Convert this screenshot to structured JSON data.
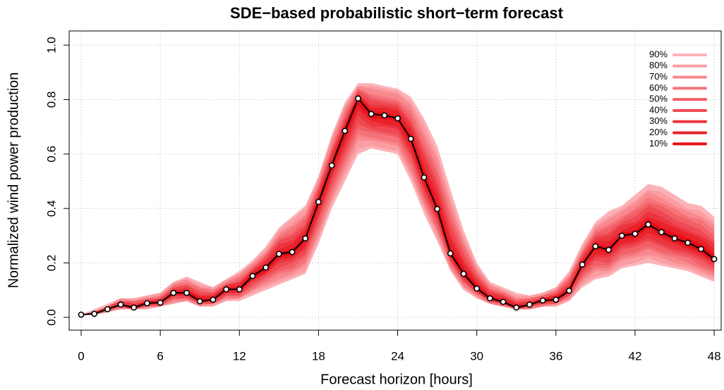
{
  "chart_data": {
    "type": "line",
    "title": "SDE−based probabilistic short−term forecast",
    "xlabel": "Forecast horizon [hours]",
    "ylabel": "Normalized wind power production",
    "x": [
      0,
      1,
      2,
      3,
      4,
      5,
      6,
      7,
      8,
      9,
      10,
      11,
      12,
      13,
      14,
      15,
      16,
      17,
      18,
      19,
      20,
      21,
      22,
      23,
      24,
      25,
      26,
      27,
      28,
      29,
      30,
      31,
      32,
      33,
      34,
      35,
      36,
      37,
      38,
      39,
      40,
      41,
      42,
      43,
      44,
      45,
      46,
      47,
      48
    ],
    "xlim": [
      -0.91,
      48.53
    ],
    "xticks": [
      0,
      6,
      12,
      18,
      24,
      30,
      36,
      42,
      48
    ],
    "ylim": [
      -0.047,
      1.052
    ],
    "yticks": [
      {
        "value": 0,
        "label": "0.0"
      },
      0.2,
      0.4,
      0.6,
      0.8,
      {
        "value": 1,
        "label": "1.0"
      }
    ],
    "grid": true,
    "legend": "top-right",
    "series": [
      {
        "color": "#000000",
        "values": [
          0.01,
          0.013,
          0.03,
          0.047,
          0.036,
          0.052,
          0.054,
          0.09,
          0.09,
          0.059,
          0.065,
          0.103,
          0.103,
          0.152,
          0.183,
          0.233,
          0.24,
          0.29,
          0.424,
          0.558,
          0.685,
          0.804,
          0.747,
          0.742,
          0.731,
          0.656,
          0.514,
          0.398,
          0.235,
          0.16,
          0.106,
          0.07,
          0.057,
          0.036,
          0.047,
          0.062,
          0.065,
          0.098,
          0.194,
          0.261,
          0.248,
          0.3,
          0.307,
          0.341,
          0.313,
          0.29,
          0.274,
          0.251,
          0.214
        ]
      }
    ],
    "bands": [
      {
        "name": "90%",
        "color": "#fcb3b8",
        "upper": [
          0.01,
          0.03,
          0.05,
          0.07,
          0.07,
          0.08,
          0.09,
          0.13,
          0.15,
          0.13,
          0.11,
          0.14,
          0.17,
          0.21,
          0.26,
          0.33,
          0.37,
          0.41,
          0.52,
          0.67,
          0.79,
          0.86,
          0.86,
          0.85,
          0.84,
          0.81,
          0.73,
          0.63,
          0.47,
          0.32,
          0.2,
          0.13,
          0.11,
          0.09,
          0.08,
          0.09,
          0.11,
          0.17,
          0.27,
          0.35,
          0.39,
          0.41,
          0.45,
          0.49,
          0.48,
          0.45,
          0.42,
          0.41,
          0.37
        ],
        "lower": [
          0.01,
          0.01,
          0.02,
          0.03,
          0.03,
          0.03,
          0.04,
          0.05,
          0.06,
          0.04,
          0.04,
          0.06,
          0.06,
          0.08,
          0.1,
          0.12,
          0.14,
          0.16,
          0.27,
          0.4,
          0.5,
          0.6,
          0.62,
          0.61,
          0.6,
          0.5,
          0.38,
          0.28,
          0.17,
          0.1,
          0.07,
          0.05,
          0.04,
          0.03,
          0.03,
          0.04,
          0.04,
          0.06,
          0.11,
          0.14,
          0.15,
          0.18,
          0.19,
          0.2,
          0.19,
          0.18,
          0.17,
          0.15,
          0.13
        ]
      },
      {
        "name": "80%",
        "color": "#fa9ea4",
        "upper": [
          0.01,
          0.02,
          0.04,
          0.07,
          0.07,
          0.08,
          0.09,
          0.13,
          0.14,
          0.12,
          0.11,
          0.14,
          0.16,
          0.2,
          0.25,
          0.32,
          0.36,
          0.4,
          0.51,
          0.66,
          0.78,
          0.85,
          0.85,
          0.84,
          0.83,
          0.79,
          0.71,
          0.6,
          0.44,
          0.3,
          0.19,
          0.12,
          0.1,
          0.08,
          0.08,
          0.09,
          0.11,
          0.16,
          0.26,
          0.34,
          0.37,
          0.4,
          0.43,
          0.47,
          0.46,
          0.43,
          0.4,
          0.39,
          0.35
        ],
        "lower": [
          0.01,
          0.01,
          0.02,
          0.03,
          0.03,
          0.03,
          0.04,
          0.05,
          0.06,
          0.04,
          0.04,
          0.06,
          0.07,
          0.09,
          0.11,
          0.13,
          0.15,
          0.17,
          0.29,
          0.42,
          0.52,
          0.62,
          0.63,
          0.62,
          0.61,
          0.52,
          0.4,
          0.29,
          0.18,
          0.11,
          0.07,
          0.05,
          0.04,
          0.03,
          0.03,
          0.04,
          0.04,
          0.06,
          0.12,
          0.15,
          0.16,
          0.19,
          0.2,
          0.22,
          0.2,
          0.19,
          0.18,
          0.16,
          0.14
        ]
      },
      {
        "name": "70%",
        "color": "#f7898f",
        "upper": [
          0.01,
          0.02,
          0.04,
          0.07,
          0.06,
          0.07,
          0.08,
          0.12,
          0.14,
          0.11,
          0.1,
          0.13,
          0.16,
          0.2,
          0.24,
          0.31,
          0.34,
          0.38,
          0.5,
          0.65,
          0.77,
          0.85,
          0.84,
          0.83,
          0.82,
          0.78,
          0.68,
          0.58,
          0.42,
          0.28,
          0.18,
          0.12,
          0.1,
          0.07,
          0.07,
          0.08,
          0.1,
          0.15,
          0.25,
          0.33,
          0.36,
          0.39,
          0.42,
          0.46,
          0.44,
          0.41,
          0.39,
          0.37,
          0.34
        ],
        "lower": [
          0.01,
          0.01,
          0.02,
          0.03,
          0.03,
          0.04,
          0.04,
          0.06,
          0.06,
          0.04,
          0.05,
          0.07,
          0.07,
          0.1,
          0.12,
          0.14,
          0.16,
          0.19,
          0.3,
          0.43,
          0.54,
          0.65,
          0.65,
          0.64,
          0.63,
          0.53,
          0.41,
          0.31,
          0.18,
          0.11,
          0.08,
          0.05,
          0.04,
          0.03,
          0.03,
          0.04,
          0.05,
          0.07,
          0.13,
          0.17,
          0.17,
          0.21,
          0.22,
          0.23,
          0.22,
          0.2,
          0.19,
          0.17,
          0.15
        ]
      },
      {
        "name": "60%",
        "color": "#f5747b",
        "upper": [
          0.01,
          0.02,
          0.04,
          0.06,
          0.06,
          0.07,
          0.08,
          0.12,
          0.13,
          0.11,
          0.1,
          0.13,
          0.15,
          0.19,
          0.23,
          0.3,
          0.33,
          0.37,
          0.49,
          0.63,
          0.76,
          0.84,
          0.82,
          0.81,
          0.8,
          0.76,
          0.66,
          0.55,
          0.39,
          0.27,
          0.17,
          0.11,
          0.09,
          0.07,
          0.07,
          0.08,
          0.1,
          0.15,
          0.24,
          0.32,
          0.34,
          0.37,
          0.4,
          0.44,
          0.42,
          0.4,
          0.37,
          0.36,
          0.32
        ],
        "lower": [
          0.01,
          0.01,
          0.02,
          0.04,
          0.03,
          0.04,
          0.04,
          0.06,
          0.07,
          0.05,
          0.05,
          0.07,
          0.07,
          0.1,
          0.13,
          0.16,
          0.17,
          0.2,
          0.32,
          0.45,
          0.56,
          0.67,
          0.66,
          0.65,
          0.64,
          0.55,
          0.42,
          0.32,
          0.19,
          0.12,
          0.08,
          0.05,
          0.04,
          0.03,
          0.03,
          0.04,
          0.05,
          0.07,
          0.14,
          0.18,
          0.18,
          0.22,
          0.23,
          0.25,
          0.23,
          0.22,
          0.2,
          0.18,
          0.16
        ]
      },
      {
        "name": "50%",
        "color": "#f25f67",
        "upper": [
          0.01,
          0.02,
          0.04,
          0.06,
          0.06,
          0.07,
          0.07,
          0.11,
          0.12,
          0.1,
          0.09,
          0.12,
          0.14,
          0.18,
          0.23,
          0.29,
          0.31,
          0.36,
          0.48,
          0.62,
          0.74,
          0.84,
          0.81,
          0.8,
          0.79,
          0.74,
          0.63,
          0.53,
          0.37,
          0.25,
          0.16,
          0.1,
          0.09,
          0.06,
          0.07,
          0.08,
          0.09,
          0.14,
          0.24,
          0.31,
          0.33,
          0.36,
          0.39,
          0.42,
          0.41,
          0.38,
          0.36,
          0.34,
          0.3
        ],
        "lower": [
          0.01,
          0.01,
          0.02,
          0.04,
          0.03,
          0.04,
          0.04,
          0.07,
          0.07,
          0.05,
          0.05,
          0.08,
          0.08,
          0.11,
          0.14,
          0.17,
          0.18,
          0.22,
          0.34,
          0.47,
          0.58,
          0.69,
          0.68,
          0.67,
          0.66,
          0.57,
          0.44,
          0.33,
          0.2,
          0.13,
          0.09,
          0.06,
          0.05,
          0.03,
          0.04,
          0.05,
          0.05,
          0.08,
          0.15,
          0.19,
          0.19,
          0.23,
          0.24,
          0.26,
          0.24,
          0.23,
          0.22,
          0.19,
          0.17
        ]
      },
      {
        "name": "40%",
        "color": "#ef4a53",
        "upper": [
          0.01,
          0.02,
          0.04,
          0.06,
          0.05,
          0.06,
          0.07,
          0.11,
          0.12,
          0.09,
          0.09,
          0.12,
          0.13,
          0.18,
          0.22,
          0.28,
          0.3,
          0.34,
          0.47,
          0.61,
          0.73,
          0.83,
          0.8,
          0.79,
          0.78,
          0.72,
          0.61,
          0.5,
          0.34,
          0.23,
          0.15,
          0.1,
          0.08,
          0.06,
          0.06,
          0.07,
          0.09,
          0.13,
          0.23,
          0.3,
          0.31,
          0.35,
          0.37,
          0.41,
          0.39,
          0.36,
          0.34,
          0.32,
          0.28
        ],
        "lower": [
          0.01,
          0.01,
          0.03,
          0.04,
          0.03,
          0.04,
          0.05,
          0.07,
          0.07,
          0.05,
          0.05,
          0.08,
          0.08,
          0.12,
          0.15,
          0.18,
          0.2,
          0.23,
          0.36,
          0.49,
          0.6,
          0.71,
          0.69,
          0.68,
          0.67,
          0.59,
          0.45,
          0.35,
          0.21,
          0.13,
          0.09,
          0.06,
          0.05,
          0.03,
          0.04,
          0.05,
          0.05,
          0.08,
          0.16,
          0.21,
          0.2,
          0.25,
          0.26,
          0.28,
          0.26,
          0.24,
          0.23,
          0.21,
          0.18
        ]
      },
      {
        "name": "30%",
        "color": "#ec363f",
        "upper": [
          0.01,
          0.02,
          0.04,
          0.06,
          0.05,
          0.06,
          0.07,
          0.1,
          0.11,
          0.08,
          0.08,
          0.12,
          0.13,
          0.17,
          0.21,
          0.27,
          0.28,
          0.33,
          0.46,
          0.6,
          0.72,
          0.82,
          0.78,
          0.78,
          0.77,
          0.71,
          0.59,
          0.48,
          0.31,
          0.21,
          0.14,
          0.09,
          0.08,
          0.05,
          0.06,
          0.07,
          0.08,
          0.12,
          0.22,
          0.29,
          0.3,
          0.34,
          0.35,
          0.39,
          0.37,
          0.34,
          0.32,
          0.3,
          0.27
        ],
        "lower": [
          0.01,
          0.01,
          0.03,
          0.04,
          0.03,
          0.05,
          0.05,
          0.08,
          0.08,
          0.05,
          0.06,
          0.09,
          0.09,
          0.13,
          0.16,
          0.2,
          0.21,
          0.25,
          0.37,
          0.51,
          0.62,
          0.74,
          0.7,
          0.7,
          0.69,
          0.6,
          0.47,
          0.36,
          0.21,
          0.14,
          0.09,
          0.06,
          0.05,
          0.03,
          0.04,
          0.05,
          0.06,
          0.09,
          0.17,
          0.22,
          0.22,
          0.26,
          0.27,
          0.29,
          0.27,
          0.25,
          0.24,
          0.22,
          0.19
        ]
      },
      {
        "name": "20%",
        "color": "#e9222b",
        "upper": [
          0.01,
          0.02,
          0.03,
          0.05,
          0.04,
          0.06,
          0.06,
          0.1,
          0.1,
          0.08,
          0.08,
          0.11,
          0.12,
          0.17,
          0.2,
          0.25,
          0.27,
          0.32,
          0.45,
          0.58,
          0.71,
          0.82,
          0.77,
          0.77,
          0.76,
          0.69,
          0.56,
          0.45,
          0.29,
          0.2,
          0.13,
          0.08,
          0.07,
          0.05,
          0.05,
          0.07,
          0.08,
          0.11,
          0.21,
          0.28,
          0.28,
          0.32,
          0.34,
          0.37,
          0.35,
          0.33,
          0.31,
          0.29,
          0.25
        ],
        "lower": [
          0.01,
          0.01,
          0.03,
          0.04,
          0.03,
          0.05,
          0.05,
          0.08,
          0.08,
          0.06,
          0.06,
          0.09,
          0.09,
          0.14,
          0.16,
          0.21,
          0.22,
          0.26,
          0.39,
          0.52,
          0.64,
          0.76,
          0.72,
          0.71,
          0.7,
          0.62,
          0.48,
          0.37,
          0.22,
          0.15,
          0.1,
          0.06,
          0.05,
          0.03,
          0.04,
          0.06,
          0.06,
          0.09,
          0.18,
          0.23,
          0.23,
          0.27,
          0.28,
          0.31,
          0.29,
          0.27,
          0.25,
          0.23,
          0.2
        ]
      },
      {
        "name": "10%",
        "color": "#e60d17",
        "upper": [
          0.01,
          0.01,
          0.03,
          0.05,
          0.04,
          0.06,
          0.06,
          0.09,
          0.1,
          0.07,
          0.07,
          0.11,
          0.11,
          0.16,
          0.19,
          0.24,
          0.25,
          0.3,
          0.43,
          0.57,
          0.7,
          0.81,
          0.76,
          0.75,
          0.74,
          0.67,
          0.54,
          0.42,
          0.26,
          0.18,
          0.12,
          0.08,
          0.06,
          0.04,
          0.05,
          0.07,
          0.07,
          0.11,
          0.2,
          0.27,
          0.26,
          0.31,
          0.32,
          0.36,
          0.33,
          0.31,
          0.29,
          0.27,
          0.23
        ],
        "lower": [
          0.01,
          0.01,
          0.03,
          0.05,
          0.04,
          0.05,
          0.05,
          0.09,
          0.09,
          0.06,
          0.06,
          0.1,
          0.1,
          0.14,
          0.17,
          0.22,
          0.23,
          0.28,
          0.41,
          0.54,
          0.66,
          0.78,
          0.73,
          0.73,
          0.72,
          0.64,
          0.5,
          0.39,
          0.23,
          0.15,
          0.1,
          0.07,
          0.06,
          0.04,
          0.05,
          0.06,
          0.06,
          0.09,
          0.19,
          0.25,
          0.24,
          0.29,
          0.29,
          0.33,
          0.3,
          0.28,
          0.26,
          0.24,
          0.2
        ]
      }
    ]
  }
}
